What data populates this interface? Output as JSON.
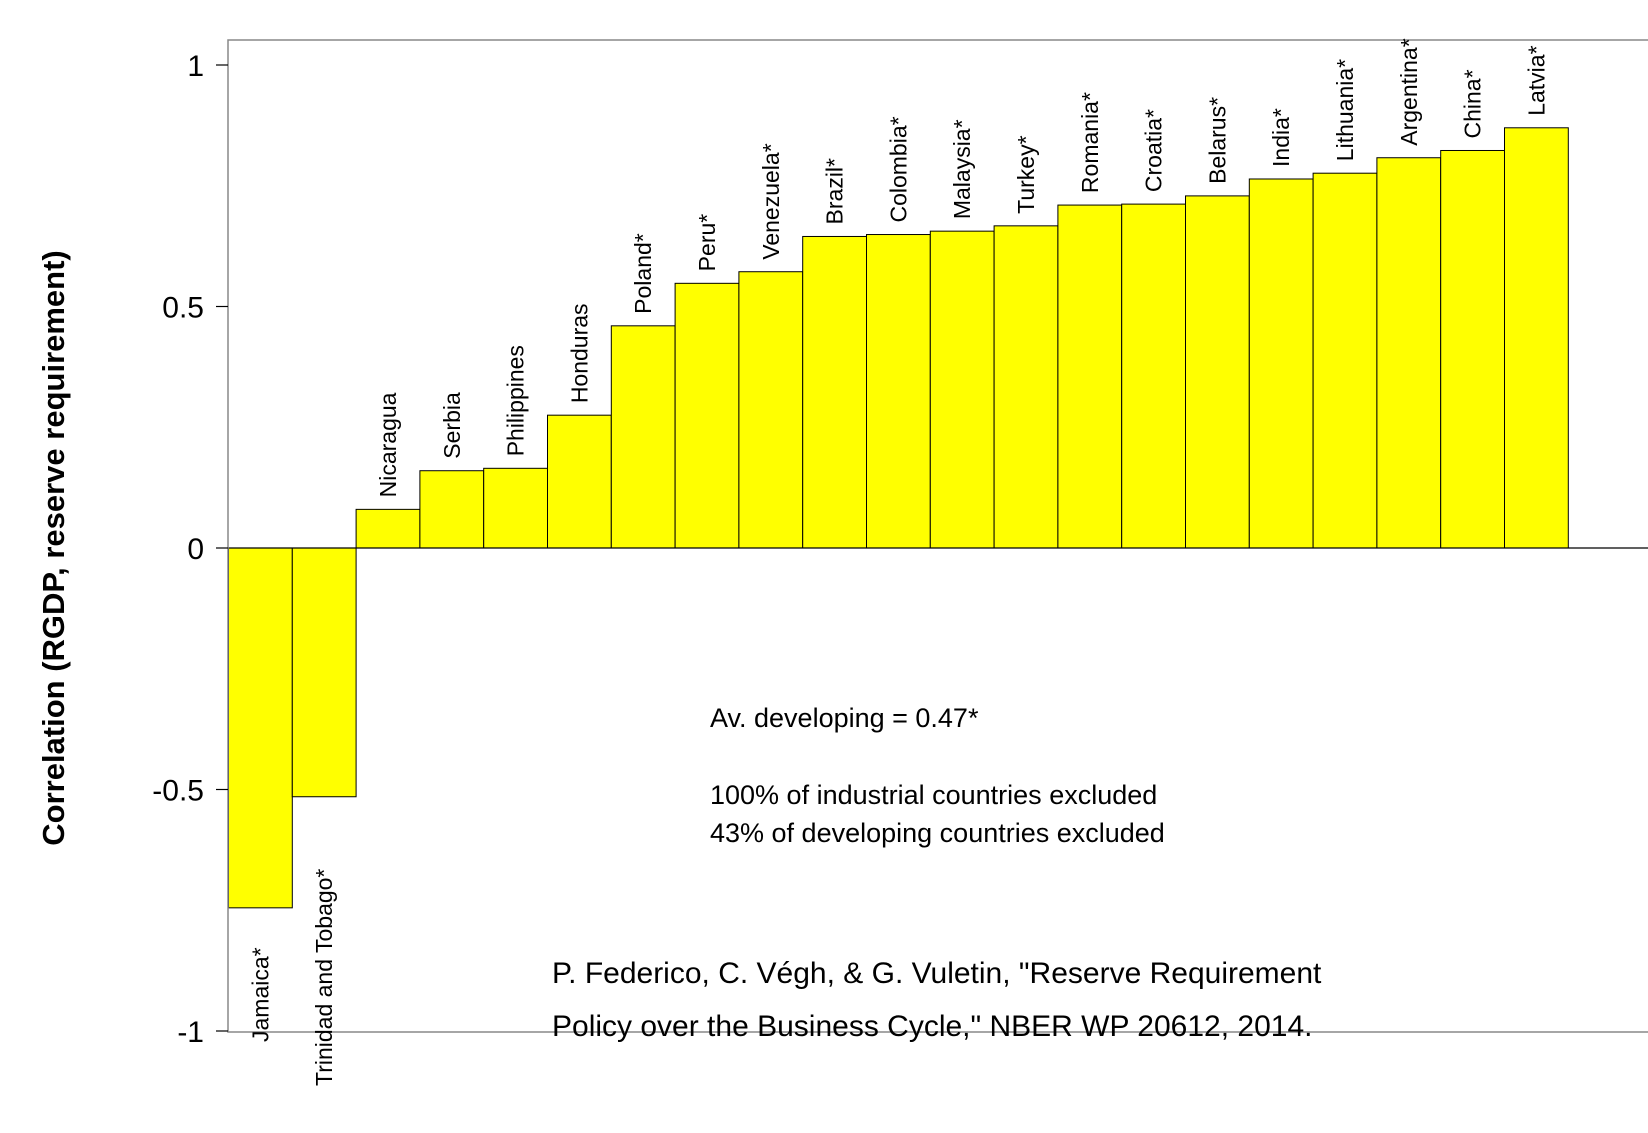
{
  "chart_data": {
    "type": "bar",
    "ylabel": "Correlation (RGDP, reserve requirement)",
    "ylim": [
      -1,
      1.05
    ],
    "yticks": [
      1,
      0.5,
      0,
      -0.5,
      -1
    ],
    "ytick_labels": [
      "1",
      "0.5",
      "0",
      "-0.5",
      "-1"
    ],
    "bar_color": "#ffff00",
    "categories": [
      "Jamaica*",
      "Trinidad and Tobago*",
      "Nicaragua",
      "Serbia",
      "Philippines",
      "Honduras",
      "Poland*",
      "Peru*",
      "Venezuela*",
      "Brazil*",
      "Colombia*",
      "Malaysia*",
      "Turkey*",
      "Romania*",
      "Croatia*",
      "Belarus*",
      "India*",
      "Lithuania*",
      "Argentina*",
      "China*",
      "Latvia*"
    ],
    "values": [
      -0.745,
      -0.515,
      0.08,
      0.16,
      0.165,
      0.275,
      0.46,
      0.548,
      0.572,
      0.645,
      0.649,
      0.656,
      0.667,
      0.71,
      0.712,
      0.729,
      0.764,
      0.776,
      0.808,
      0.823,
      0.87
    ],
    "annotations": {
      "average": "Av. developing = 0.47*",
      "industrial_excluded": "100% of industrial countries excluded",
      "developing_excluded": "43% of developing countries excluded"
    }
  },
  "citation": {
    "line1": "P. Federico, C. Végh, & G. Vuletin, \"Reserve Requirement",
    "line2": "Policy over the Business Cycle,\" NBER WP 20612, 2014."
  }
}
